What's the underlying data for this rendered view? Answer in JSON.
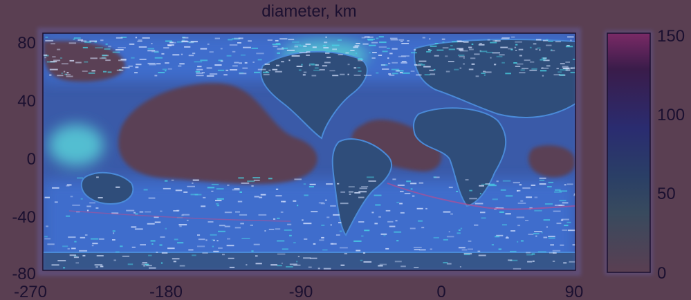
{
  "chart_data": {
    "type": "heatmap",
    "title": "diameter, km",
    "x_ticks": [
      "-270",
      "-180",
      "-90",
      "0",
      "90"
    ],
    "y_ticks": [
      "80",
      "40",
      "0",
      "-40",
      "-80"
    ],
    "xlim": [
      -270,
      90
    ],
    "ylim": [
      -80,
      80
    ],
    "colorbar": {
      "ticks": [
        "150",
        "100",
        "50",
        "0"
      ],
      "range": [
        0,
        150
      ]
    },
    "colors": {
      "background": "#5a3f52",
      "land": "#2f4f72",
      "ocean_low": "#5c4a78",
      "eddy": "#3a6fd8",
      "eddy_high": "#55c8e0",
      "frame": "#1b1030"
    }
  }
}
